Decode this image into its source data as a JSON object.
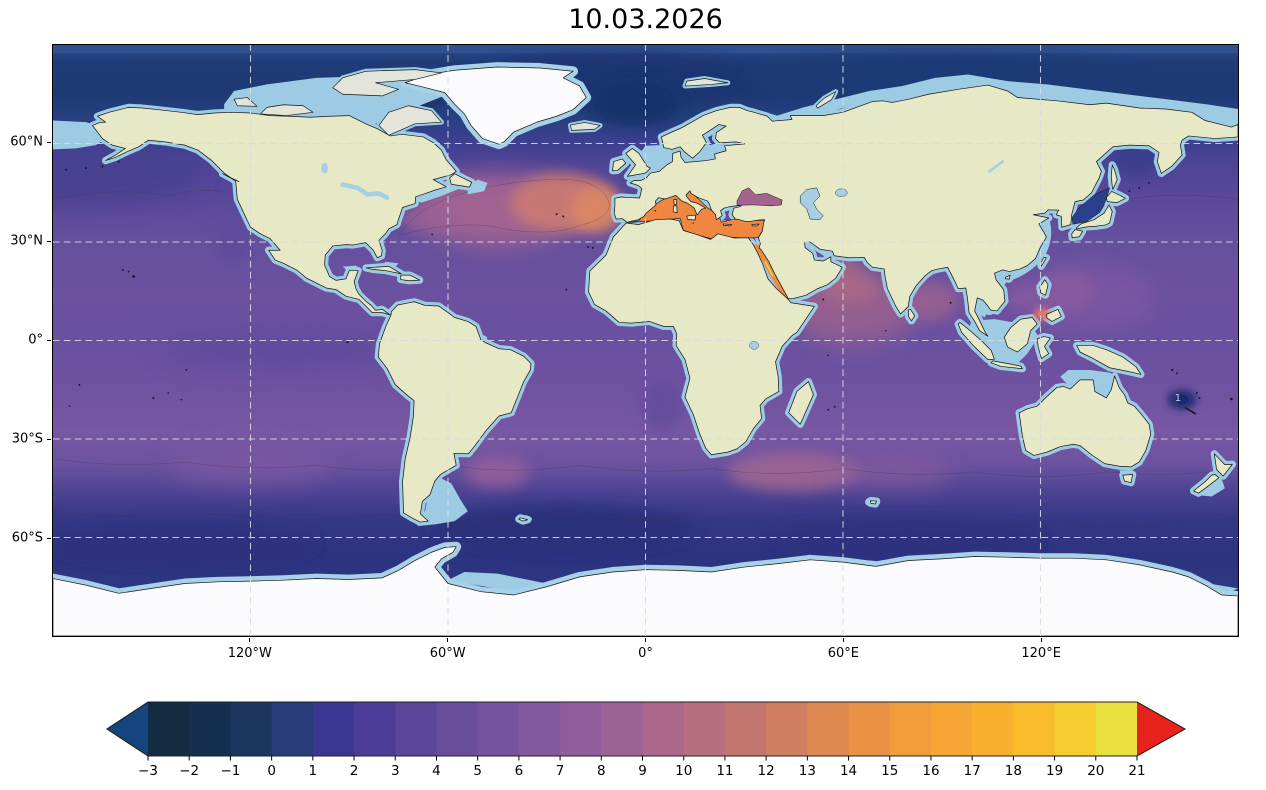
{
  "title": "10.03.2026",
  "axes": {
    "x_ticks": [
      {
        "label": "120°W",
        "lon": -120
      },
      {
        "label": "60°W",
        "lon": -60
      },
      {
        "label": "0°",
        "lon": 0
      },
      {
        "label": "60°E",
        "lon": 60
      },
      {
        "label": "120°E",
        "lon": 120
      }
    ],
    "y_ticks": [
      {
        "label": "60°N",
        "lat": 60
      },
      {
        "label": "30°N",
        "lat": 30
      },
      {
        "label": "0°",
        "lat": 0
      },
      {
        "label": "30°S",
        "lat": -30
      },
      {
        "label": "60°S",
        "lat": -60
      }
    ]
  },
  "map": {
    "contour_label": "1"
  },
  "palette": {
    "ocean_polar": "#1d3a74",
    "ocean_mid": "#65509e",
    "shelf_no_data": "#9ccbe3",
    "ice_sheet": "#fbfbfd",
    "land": "#e7e8c6",
    "mediterranean_accent": "#f0863f",
    "warm_atlantic_accent": "#d87a68",
    "grid_line": "#d8dce0"
  },
  "colorbar": {
    "min": -3,
    "max": 21,
    "extend": "both",
    "under_arrow_color": "#15457e",
    "over_arrow_color": "#e8231b",
    "tick_values": [
      -3,
      -2,
      -1,
      0,
      1,
      2,
      3,
      4,
      5,
      6,
      7,
      8,
      9,
      10,
      11,
      12,
      13,
      14,
      15,
      16,
      17,
      18,
      19,
      20,
      21
    ],
    "tick_labels": [
      "−3",
      "−2",
      "−1",
      "0",
      "1",
      "2",
      "3",
      "4",
      "5",
      "6",
      "7",
      "8",
      "9",
      "10",
      "11",
      "12",
      "13",
      "14",
      "15",
      "16",
      "17",
      "18",
      "19",
      "20",
      "21"
    ],
    "segment_colors": [
      "#132c42",
      "#152f4e",
      "#1c3660",
      "#273c79",
      "#3a3691",
      "#4b3d96",
      "#59459a",
      "#684d9d",
      "#76539f",
      "#82589f",
      "#8f5d9b",
      "#9d6294",
      "#ab688a",
      "#b76e7e",
      "#c37570",
      "#d07e60",
      "#dd8850",
      "#e89245",
      "#f09c3b",
      "#f5a634",
      "#f8b02e",
      "#f9bd2b",
      "#f6cd2e",
      "#e9df3d"
    ]
  },
  "chart_data": {
    "type": "heatmap",
    "title": "10.03.2026",
    "projection": "equirectangular world map (PlateCarree), filled contours over ocean",
    "x_axis": {
      "tick_labels": [
        "120°W",
        "60°W",
        "0°",
        "60°E",
        "120°E"
      ],
      "range_lon": [
        -180,
        180
      ]
    },
    "y_axis": {
      "tick_labels": [
        "60°N",
        "30°N",
        "0°",
        "30°S",
        "60°S"
      ],
      "range_lat": [
        -90,
        90
      ]
    },
    "colorbar": {
      "range": [
        -3,
        21
      ],
      "tick_step": 1,
      "n_segments": 24,
      "extend": "both"
    },
    "legend_position": "bottom horizontal colorbar",
    "grid": "dashed graticule every 30° lat / 60° lon",
    "estimated_region_values": {
      "arctic_ocean": "-1 to 1",
      "norwegian_greenland_sea": "-2 to 0",
      "north_atlantic_subtropics": "8 to 13",
      "mediterranean_sea": "15 to 17",
      "red_sea": "15 to 21",
      "black_sea": "9 to 10",
      "sea_of_japan": "0 to 1",
      "sulu_sea_philippines": "11 to 12",
      "tropical_pacific": "4 to 7",
      "north_indian_ocean": "7 to 10",
      "agulhas_region": "8 to 10",
      "southern_ocean_50S_65S": "-1 to 2",
      "vanuatu_cold_eddy": "1",
      "shallow_shelves": "no data (light blue)",
      "ice_sheets": "no data (white)"
    }
  }
}
